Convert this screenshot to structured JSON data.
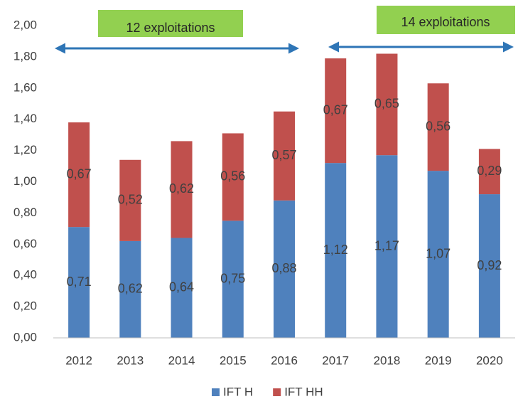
{
  "chart_data": {
    "type": "stacked_bar",
    "categories": [
      "2012",
      "2013",
      "2014",
      "2015",
      "2016",
      "2017",
      "2018",
      "2019",
      "2020"
    ],
    "series": [
      {
        "name": "IFT H",
        "color": "#4f81bd",
        "values": [
          0.71,
          0.62,
          0.64,
          0.75,
          0.88,
          1.12,
          1.17,
          1.07,
          0.92
        ],
        "value_labels": [
          "0,71",
          "0,62",
          "0,64",
          "0,75",
          "0,88",
          "1,12",
          "1,17",
          "1,07",
          "0,92"
        ]
      },
      {
        "name": "IFT HH",
        "color": "#c0504d",
        "values": [
          0.67,
          0.52,
          0.62,
          0.56,
          0.57,
          0.67,
          0.65,
          0.56,
          0.29
        ],
        "value_labels": [
          "0,67",
          "0,52",
          "0,62",
          "0,56",
          "0,57",
          "0,67",
          "0,65",
          "0,56",
          "0,29"
        ]
      }
    ],
    "ylim": [
      0,
      2
    ],
    "yticks": [
      {
        "value": 0,
        "label": "0,00"
      },
      {
        "value": 0.2,
        "label": "0,20"
      },
      {
        "value": 0.4,
        "label": "0,40"
      },
      {
        "value": 0.6,
        "label": "0,60"
      },
      {
        "value": 0.8,
        "label": "0,80"
      },
      {
        "value": 1,
        "label": "1,00"
      },
      {
        "value": 1.2,
        "label": "1,20"
      },
      {
        "value": 1.4,
        "label": "1,40"
      },
      {
        "value": 1.6,
        "label": "1,60"
      },
      {
        "value": 1.8,
        "label": "1,80"
      },
      {
        "value": 2,
        "label": "2,00"
      }
    ],
    "annotations": [
      "12 exploitations",
      "14 exploitations"
    ],
    "grid": false,
    "legend": "bottom"
  }
}
